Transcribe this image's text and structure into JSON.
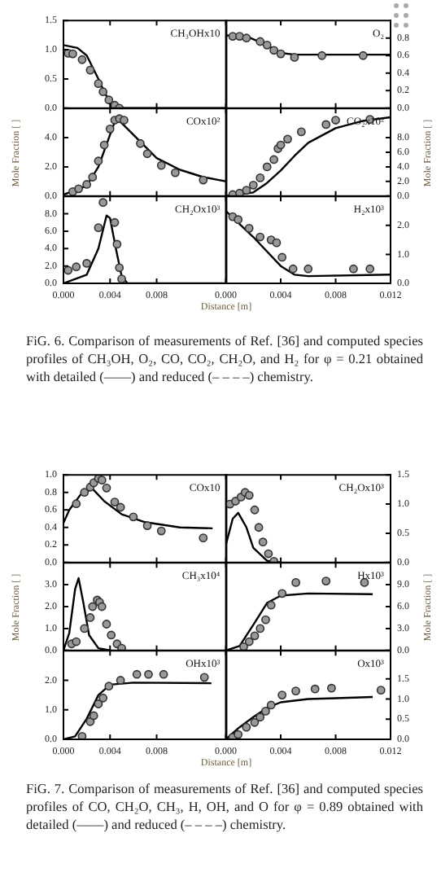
{
  "chart_data": [
    {
      "type": "scatter",
      "annotations": [
        "CH₃OHx10",
        "FiG. 6. Comparison of measurements of Ref. [36] and computed species profiles of CH₃OH, O₂, CO, CO₂, CH₂O, and H₂ for φ = 0.21 obtained with detailed (——) and reduced (– – – –) chemistry."
      ],
      "xlim": [
        0,
        0.014
      ],
      "xticks": [
        {
          "value": 0,
          "label": null
        },
        {
          "value": 0.004,
          "label": null
        },
        {
          "value": 0.008,
          "label": null
        }
      ],
      "ylim": [
        0,
        1.5
      ],
      "yticks": [
        {
          "value": 0,
          "label": "0.0"
        },
        {
          "value": 0.5,
          "label": "0.5"
        },
        {
          "value": 1,
          "label": "1.0"
        },
        {
          "value": 1.5,
          "label": "1.5"
        }
      ],
      "tick_labels": "y",
      "series": [
        {
          "type": "scatter",
          "marker": "circle",
          "color": "#999999",
          "x": [
            0.0004,
            0.0008,
            0.0016,
            0.0023,
            0.003,
            0.0034,
            0.0039,
            0.0044,
            0.0048
          ],
          "values": [
            0.94,
            0.93,
            0.83,
            0.65,
            0.42,
            0.28,
            0.14,
            0.05,
            0.0
          ]
        },
        {
          "type": "line",
          "marker": "none",
          "color": "#000000",
          "x": [
            0,
            0.0012,
            0.002,
            0.003,
            0.0035,
            0.004,
            0.0045,
            0.005,
            0.014
          ],
          "values": [
            1.08,
            1.03,
            0.9,
            0.5,
            0.28,
            0.1,
            0.02,
            0,
            0
          ]
        }
      ]
    },
    {
      "type": "scatter",
      "annotations": [
        "O₂"
      ],
      "xlim": [
        0,
        0.012
      ],
      "xticks": [
        {
          "value": 0,
          "label": null
        },
        {
          "value": 0.004,
          "label": null
        },
        {
          "value": 0.008,
          "label": null
        },
        {
          "value": 0.012,
          "label": null
        }
      ],
      "y2lim": [
        0,
        1
      ],
      "y2ticks": [
        {
          "value": 0,
          "label": "0.0"
        },
        {
          "value": 0.2,
          "label": "0.2"
        },
        {
          "value": 0.4,
          "label": "0.4"
        },
        {
          "value": 0.6,
          "label": "0.6"
        },
        {
          "value": 0.8,
          "label": "0.8"
        }
      ],
      "tick_labels": "y",
      "series": [
        {
          "type": "scatter",
          "axis": "y2",
          "marker": "circle",
          "color": "#999999",
          "x": [
            0.0005,
            0.001,
            0.0015,
            0.0025,
            0.003,
            0.0035,
            0.004,
            0.005,
            0.007,
            0.01
          ],
          "values": [
            0.82,
            0.82,
            0.8,
            0.76,
            0.72,
            0.66,
            0.62,
            0.58,
            0.6,
            0.6
          ]
        },
        {
          "type": "line",
          "axis": "y2",
          "marker": "none",
          "color": "#000000",
          "x": [
            0,
            0.0015,
            0.003,
            0.004,
            0.005,
            0.012
          ],
          "values": [
            0.83,
            0.82,
            0.72,
            0.63,
            0.61,
            0.61
          ]
        }
      ]
    },
    {
      "type": "scatter",
      "annotations": [
        "COx10²"
      ],
      "ylabel": "Mole Fraction [ ]",
      "xlim": [
        0,
        0.014
      ],
      "xticks": [
        {
          "value": 0,
          "label": null
        },
        {
          "value": 0.004,
          "label": null
        },
        {
          "value": 0.008,
          "label": null
        }
      ],
      "ylim": [
        0,
        6
      ],
      "yticks": [
        {
          "value": 0,
          "label": "0.0"
        },
        {
          "value": 2,
          "label": "2.0"
        },
        {
          "value": 4,
          "label": "4.0"
        }
      ],
      "tick_labels": "y",
      "series": [
        {
          "type": "scatter",
          "marker": "circle",
          "color": "#999999",
          "x": [
            0.0008,
            0.0013,
            0.002,
            0.0025,
            0.003,
            0.0035,
            0.004,
            0.0044,
            0.0048,
            0.0052,
            0.0066,
            0.0072,
            0.0084,
            0.0096,
            0.012
          ],
          "values": [
            0.3,
            0.5,
            0.8,
            1.3,
            2.4,
            3.5,
            4.6,
            5.2,
            5.3,
            5.2,
            3.6,
            2.9,
            2.1,
            1.6,
            1.1
          ]
        },
        {
          "type": "line",
          "marker": "none",
          "color": "#000000",
          "x": [
            0,
            0.002,
            0.003,
            0.0045,
            0.005,
            0.0065,
            0.008,
            0.01,
            0.012,
            0.014
          ],
          "values": [
            0.1,
            0.7,
            2.0,
            5.3,
            5.0,
            3.8,
            2.6,
            1.8,
            1.3,
            1.0
          ]
        }
      ]
    },
    {
      "type": "scatter",
      "annotations": [
        "CO₂x10²"
      ],
      "y2label": "Mole Fraction [ ]",
      "xlim": [
        0,
        0.012
      ],
      "xticks": [
        {
          "value": 0,
          "label": null
        },
        {
          "value": 0.004,
          "label": null
        },
        {
          "value": 0.008,
          "label": null
        },
        {
          "value": 0.012,
          "label": null
        }
      ],
      "y2lim": [
        0,
        12
      ],
      "y2ticks": [
        {
          "value": 0,
          "label": "0.0"
        },
        {
          "value": 2,
          "label": "2.0"
        },
        {
          "value": 4,
          "label": "4.0"
        },
        {
          "value": 6,
          "label": "6.0"
        },
        {
          "value": 8,
          "label": "8.0"
        }
      ],
      "tick_labels": "y",
      "series": [
        {
          "type": "scatter",
          "axis": "y2",
          "marker": "circle",
          "color": "#999999",
          "x": [
            0.0005,
            0.001,
            0.0015,
            0.002,
            0.0025,
            0.003,
            0.0035,
            0.0038,
            0.004,
            0.0045,
            0.0055,
            0.0073,
            0.008,
            0.0105
          ],
          "values": [
            0.2,
            0.4,
            0.8,
            1.5,
            2.5,
            4,
            5,
            6.5,
            7,
            7.8,
            8.8,
            9.8,
            10.4,
            10.5
          ]
        },
        {
          "type": "line",
          "axis": "y2",
          "marker": "none",
          "color": "#000000",
          "x": [
            0,
            0.002,
            0.003,
            0.004,
            0.005,
            0.006,
            0.008,
            0.01,
            0.012
          ],
          "values": [
            0,
            0.5,
            1.8,
            3.5,
            5.5,
            7.3,
            9.3,
            10.3,
            10.8
          ]
        }
      ]
    },
    {
      "type": "scatter",
      "annotations": [
        "CH₂Ox10³"
      ],
      "xlabel": "Distance [m]",
      "xlim": [
        0,
        0.014
      ],
      "xticks": [
        {
          "value": 0,
          "label": "0.000"
        },
        {
          "value": 0.004,
          "label": "0.004"
        },
        {
          "value": 0.008,
          "label": "0.008"
        }
      ],
      "ylim": [
        0,
        10
      ],
      "yticks": [
        {
          "value": 0,
          "label": "0.0"
        },
        {
          "value": 2,
          "label": "2.0"
        },
        {
          "value": 4,
          "label": "4.0"
        },
        {
          "value": 6,
          "label": "6.0"
        },
        {
          "value": 8,
          "label": "8.0"
        }
      ],
      "series": [
        {
          "type": "scatter",
          "marker": "circle",
          "color": "#999999",
          "x": [
            0.0004,
            0.0011,
            0.002,
            0.003,
            0.0034,
            0.0044,
            0.0046,
            0.0048,
            0.005
          ],
          "values": [
            1.5,
            1.9,
            2.3,
            6.4,
            9.3,
            7,
            4.5,
            1.8,
            0.5
          ]
        },
        {
          "type": "line",
          "marker": "none",
          "color": "#000000",
          "x": [
            0,
            0.002,
            0.003,
            0.0037,
            0.004,
            0.0045,
            0.005,
            0.0055,
            0.014
          ],
          "values": [
            0,
            1,
            4,
            7.8,
            7.5,
            4,
            0.8,
            0,
            0
          ]
        }
      ]
    },
    {
      "type": "scatter",
      "annotations": [
        "H₂x10³"
      ],
      "xlim": [
        0,
        0.012
      ],
      "xticks": [
        {
          "value": 0,
          "label": "0.000"
        },
        {
          "value": 0.004,
          "label": "0.004"
        },
        {
          "value": 0.008,
          "label": "0.008"
        },
        {
          "value": 0.012,
          "label": "0.012"
        }
      ],
      "y2lim": [
        0,
        3
      ],
      "y2ticks": [
        {
          "value": 0,
          "label": "0.0"
        },
        {
          "value": 1,
          "label": "1.0"
        },
        {
          "value": 2,
          "label": "2.0"
        }
      ],
      "series": [
        {
          "type": "scatter",
          "axis": "y2",
          "marker": "circle",
          "color": "#999999",
          "x": [
            0.0005,
            0.0009,
            0.0017,
            0.0025,
            0.0033,
            0.0037,
            0.0041,
            0.0049,
            0.006,
            0.0093,
            0.0105
          ],
          "values": [
            2.3,
            2.2,
            1.9,
            1.6,
            1.5,
            1.4,
            0.9,
            0.5,
            0.5,
            0.5,
            0.5
          ]
        },
        {
          "type": "line",
          "axis": "y2",
          "marker": "none",
          "color": "#000000",
          "x": [
            0,
            0.002,
            0.004,
            0.005,
            0.006,
            0.012
          ],
          "values": [
            2.5,
            1.6,
            0.6,
            0.3,
            0.25,
            0.3
          ]
        }
      ]
    },
    {
      "type": "scatter",
      "annotations": [
        "COx10",
        "FiG. 7. Comparison of measurements of Ref. [36] and computed species profiles of CO, CH₂O, CH₃, H, OH, and O for φ = 0.89 obtained with detailed (——) and reduced (– – – –) chemistry."
      ],
      "xlim": [
        0,
        0.014
      ],
      "xticks": [
        {
          "value": 0,
          "label": null
        },
        {
          "value": 0.004,
          "label": null
        },
        {
          "value": 0.008,
          "label": null
        }
      ],
      "ylim": [
        0,
        1
      ],
      "yticks": [
        {
          "value": 0,
          "label": "0.0"
        },
        {
          "value": 0.2,
          "label": "0.2"
        },
        {
          "value": 0.4,
          "label": "0.4"
        },
        {
          "value": 0.6,
          "label": "0.6"
        },
        {
          "value": 0.8,
          "label": "0.8"
        },
        {
          "value": 1,
          "label": "1.0"
        }
      ],
      "tick_labels": "y",
      "series": [
        {
          "type": "scatter",
          "marker": "circle",
          "color": "#999999",
          "x": [
            0.0011,
            0.0018,
            0.0023,
            0.0026,
            0.003,
            0.0033,
            0.0037,
            0.0044,
            0.0049,
            0.006,
            0.0072,
            0.0084,
            0.012
          ],
          "values": [
            0.67,
            0.8,
            0.86,
            0.91,
            0.96,
            0.94,
            0.85,
            0.69,
            0.63,
            0.52,
            0.42,
            0.36,
            0.28
          ]
        },
        {
          "type": "line",
          "marker": "none",
          "color": "#000000",
          "x": [
            0,
            0.0005,
            0.0015,
            0.0025,
            0.0035,
            0.005,
            0.007,
            0.01,
            0.0128
          ],
          "values": [
            0.45,
            0.6,
            0.78,
            0.84,
            0.7,
            0.55,
            0.46,
            0.4,
            0.39
          ]
        }
      ]
    },
    {
      "type": "scatter",
      "annotations": [
        "CH₂Ox10³"
      ],
      "xlim": [
        0,
        0.012
      ],
      "xticks": [
        {
          "value": 0,
          "label": null
        },
        {
          "value": 0.004,
          "label": null
        },
        {
          "value": 0.008,
          "label": null
        },
        {
          "value": 0.012,
          "label": null
        }
      ],
      "y2lim": [
        0,
        1.5
      ],
      "y2ticks": [
        {
          "value": 0,
          "label": "0.0"
        },
        {
          "value": 0.5,
          "label": "0.5"
        },
        {
          "value": 1,
          "label": "1.0"
        },
        {
          "value": 1.5,
          "label": "1.5"
        }
      ],
      "tick_labels": "y",
      "series": [
        {
          "type": "scatter",
          "axis": "y2",
          "marker": "circle",
          "color": "#999999",
          "x": [
            0.0003,
            0.0007,
            0.0011,
            0.0014,
            0.0017,
            0.0021,
            0.0024,
            0.0027,
            0.0031,
            0.0035
          ],
          "values": [
            1.0,
            1.05,
            1.12,
            1.2,
            1.15,
            0.9,
            0.6,
            0.35,
            0.15,
            0.02
          ]
        },
        {
          "type": "line",
          "axis": "y2",
          "marker": "none",
          "color": "#000000",
          "x": [
            0,
            0.0005,
            0.0009,
            0.0015,
            0.002,
            0.003,
            0.004
          ],
          "values": [
            0.3,
            0.75,
            0.85,
            0.6,
            0.25,
            0.03,
            0
          ]
        }
      ]
    },
    {
      "type": "scatter",
      "annotations": [
        "CH₃x10⁴"
      ],
      "ylabel": "Mole Fraction [ ]",
      "xlim": [
        0,
        0.014
      ],
      "xticks": [
        {
          "value": 0,
          "label": null
        },
        {
          "value": 0.004,
          "label": null
        },
        {
          "value": 0.008,
          "label": null
        }
      ],
      "ylim": [
        0,
        4
      ],
      "yticks": [
        {
          "value": 0,
          "label": "0.0"
        },
        {
          "value": 1,
          "label": "1.0"
        },
        {
          "value": 2,
          "label": "2.0"
        },
        {
          "value": 3,
          "label": "3.0"
        }
      ],
      "tick_labels": "y",
      "series": [
        {
          "type": "scatter",
          "marker": "circle",
          "color": "#999999",
          "x": [
            0.0007,
            0.0011,
            0.0018,
            0.0023,
            0.0025,
            0.0029,
            0.0031,
            0.0033,
            0.0037,
            0.0041,
            0.0046,
            0.005
          ],
          "values": [
            0.3,
            0.4,
            1.0,
            1.5,
            2.0,
            2.3,
            2.2,
            2.0,
            1.2,
            0.7,
            0.3,
            0.1
          ]
        },
        {
          "type": "line",
          "marker": "none",
          "color": "#000000",
          "x": [
            0,
            0.0005,
            0.001,
            0.0013,
            0.0017,
            0.0022,
            0.003,
            0.004
          ],
          "values": [
            0,
            0.8,
            2.8,
            3.3,
            2.2,
            0.7,
            0.1,
            0
          ]
        }
      ]
    },
    {
      "type": "scatter",
      "annotations": [
        "Hx10³"
      ],
      "y2label": "Mole Fraction [ ]",
      "xlim": [
        0,
        0.012
      ],
      "xticks": [
        {
          "value": 0,
          "label": null
        },
        {
          "value": 0.004,
          "label": null
        },
        {
          "value": 0.008,
          "label": null
        },
        {
          "value": 0.012,
          "label": null
        }
      ],
      "y2lim": [
        0,
        12
      ],
      "y2ticks": [
        {
          "value": 0,
          "label": "0.0"
        },
        {
          "value": 3,
          "label": "3.0"
        },
        {
          "value": 6,
          "label": "6.0"
        },
        {
          "value": 9,
          "label": "9.0"
        }
      ],
      "tick_labels": "y",
      "series": [
        {
          "type": "scatter",
          "axis": "y2",
          "marker": "circle",
          "color": "#999999",
          "x": [
            0.0013,
            0.0017,
            0.0021,
            0.0025,
            0.0029,
            0.0033,
            0.0041,
            0.0051,
            0.0073,
            0.0101
          ],
          "values": [
            0.5,
            1.2,
            2,
            3,
            4.2,
            6.2,
            7.8,
            9.3,
            9.5,
            9.3
          ]
        },
        {
          "type": "line",
          "axis": "y2",
          "marker": "none",
          "color": "#000000",
          "x": [
            0,
            0.001,
            0.002,
            0.003,
            0.004,
            0.006,
            0.0107
          ],
          "values": [
            0,
            0.6,
            3.5,
            6.5,
            7.5,
            7.8,
            7.7
          ]
        }
      ]
    },
    {
      "type": "scatter",
      "annotations": [
        "OHx10³"
      ],
      "xlabel": "Distance [m]",
      "xlim": [
        0,
        0.014
      ],
      "xticks": [
        {
          "value": 0,
          "label": "0.000"
        },
        {
          "value": 0.004,
          "label": "0.004"
        },
        {
          "value": 0.008,
          "label": "0.008"
        }
      ],
      "ylim": [
        0,
        3
      ],
      "yticks": [
        {
          "value": 0,
          "label": "0.0"
        },
        {
          "value": 1,
          "label": "1.0"
        },
        {
          "value": 2,
          "label": "2.0"
        }
      ],
      "series": [
        {
          "type": "scatter",
          "marker": "circle",
          "color": "#999999",
          "x": [
            0.0016,
            0.0023,
            0.0026,
            0.003,
            0.0034,
            0.0039,
            0.0049,
            0.0063,
            0.0073,
            0.0086,
            0.0121
          ],
          "values": [
            0.1,
            0.6,
            0.8,
            1.2,
            1.4,
            1.8,
            2.0,
            2.2,
            2.2,
            2.2,
            2.1
          ]
        },
        {
          "type": "line",
          "marker": "none",
          "color": "#000000",
          "x": [
            0,
            0.001,
            0.002,
            0.003,
            0.004,
            0.006,
            0.0127
          ],
          "values": [
            0,
            0.1,
            0.7,
            1.5,
            1.85,
            1.92,
            1.9
          ]
        }
      ]
    },
    {
      "type": "scatter",
      "annotations": [
        "Ox10³"
      ],
      "xlim": [
        0,
        0.012
      ],
      "xticks": [
        {
          "value": 0,
          "label": "0.000"
        },
        {
          "value": 0.004,
          "label": "0.004"
        },
        {
          "value": 0.008,
          "label": "0.008"
        },
        {
          "value": 0.012,
          "label": "0.012"
        }
      ],
      "y2lim": [
        0,
        2.2
      ],
      "y2ticks": [
        {
          "value": 0,
          "label": "0.0"
        },
        {
          "value": 0.5,
          "label": "0.5"
        },
        {
          "value": 1,
          "label": "1.0"
        },
        {
          "value": 1.5,
          "label": "1.5"
        }
      ],
      "series": [
        {
          "type": "scatter",
          "axis": "y2",
          "marker": "circle",
          "color": "#999999",
          "x": [
            0.0005,
            0.0009,
            0.0015,
            0.0021,
            0.0025,
            0.0029,
            0.0033,
            0.0041,
            0.0051,
            0.0065,
            0.0077,
            0.0113
          ],
          "values": [
            0.05,
            0.12,
            0.3,
            0.42,
            0.55,
            0.7,
            0.85,
            1.1,
            1.2,
            1.25,
            1.27,
            1.22
          ]
        },
        {
          "type": "line",
          "axis": "y2",
          "marker": "none",
          "color": "#000000",
          "x": [
            0,
            0.001,
            0.002,
            0.003,
            0.004,
            0.006,
            0.008,
            0.0107
          ],
          "values": [
            0,
            0.3,
            0.55,
            0.78,
            0.92,
            1.0,
            1.02,
            1.05
          ]
        }
      ]
    }
  ]
}
